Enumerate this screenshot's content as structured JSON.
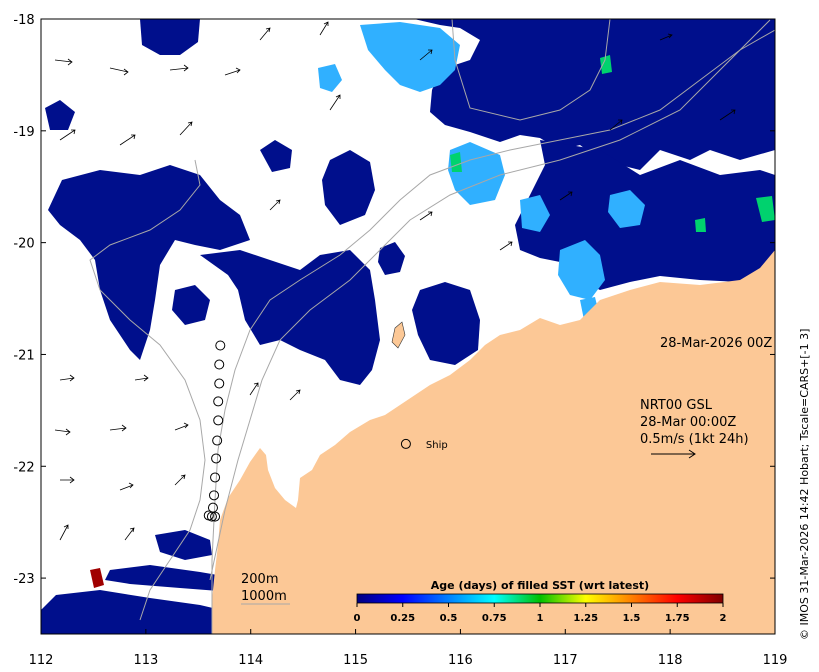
{
  "map": {
    "lon_min": 112,
    "lon_max": 119,
    "lat_min": -23.5,
    "lat_max": -18,
    "x_ticks": [
      112,
      113,
      114,
      115,
      116,
      117,
      118,
      119
    ],
    "y_ticks": [
      -18,
      -19,
      -20,
      -21,
      -22,
      -23
    ],
    "x_tick_labels": [
      "112",
      "113",
      "114",
      "115",
      "116",
      "117",
      "118",
      "119"
    ],
    "y_tick_labels": [
      "-18",
      "-19",
      "-20",
      "-21",
      "-22",
      "-23"
    ],
    "date_label": "28-Mar-2026 00Z",
    "vector_info_lines": [
      "NRT00 GSL",
      "28-Mar 00:00Z",
      "0.5m/s (1kt 24h)"
    ],
    "ship_label": "Ship",
    "contour_labels": [
      "200m",
      "1000m"
    ],
    "credit": "© IMOS 31-Mar-2026 14:42 Hobart; Tscale=CARS+[-1 3]",
    "colors": {
      "land": "#fcc896",
      "sst_age_0": "#000f8c",
      "sst_age_mid": "#30b0ff",
      "background": "#ffffff"
    },
    "track_points": [
      {
        "lon": 113.71,
        "lat": -20.92
      },
      {
        "lon": 113.7,
        "lat": -21.09
      },
      {
        "lon": 113.7,
        "lat": -21.26
      },
      {
        "lon": 113.69,
        "lat": -21.42
      },
      {
        "lon": 113.69,
        "lat": -21.59
      },
      {
        "lon": 113.68,
        "lat": -21.77
      },
      {
        "lon": 113.67,
        "lat": -21.93
      },
      {
        "lon": 113.66,
        "lat": -22.1
      },
      {
        "lon": 113.65,
        "lat": -22.26
      },
      {
        "lon": 113.64,
        "lat": -22.37
      },
      {
        "lon": 113.6,
        "lat": -22.44
      },
      {
        "lon": 113.63,
        "lat": -22.45
      },
      {
        "lon": 113.66,
        "lat": -22.45
      }
    ],
    "ship_position": {
      "lon": 115.48,
      "lat": -21.8
    }
  },
  "colorbar": {
    "title": "Age (days) of filled SST (wrt latest)",
    "ticks": [
      "0",
      "0.25",
      "0.5",
      "0.75",
      "1",
      "1.25",
      "1.5",
      "1.75",
      "2"
    ],
    "min": 0,
    "max": 2,
    "stops": [
      "#00007f",
      "#0000ff",
      "#0080ff",
      "#00ffff",
      "#00c000",
      "#ffff00",
      "#ff8000",
      "#ff0000",
      "#7f0000"
    ]
  }
}
